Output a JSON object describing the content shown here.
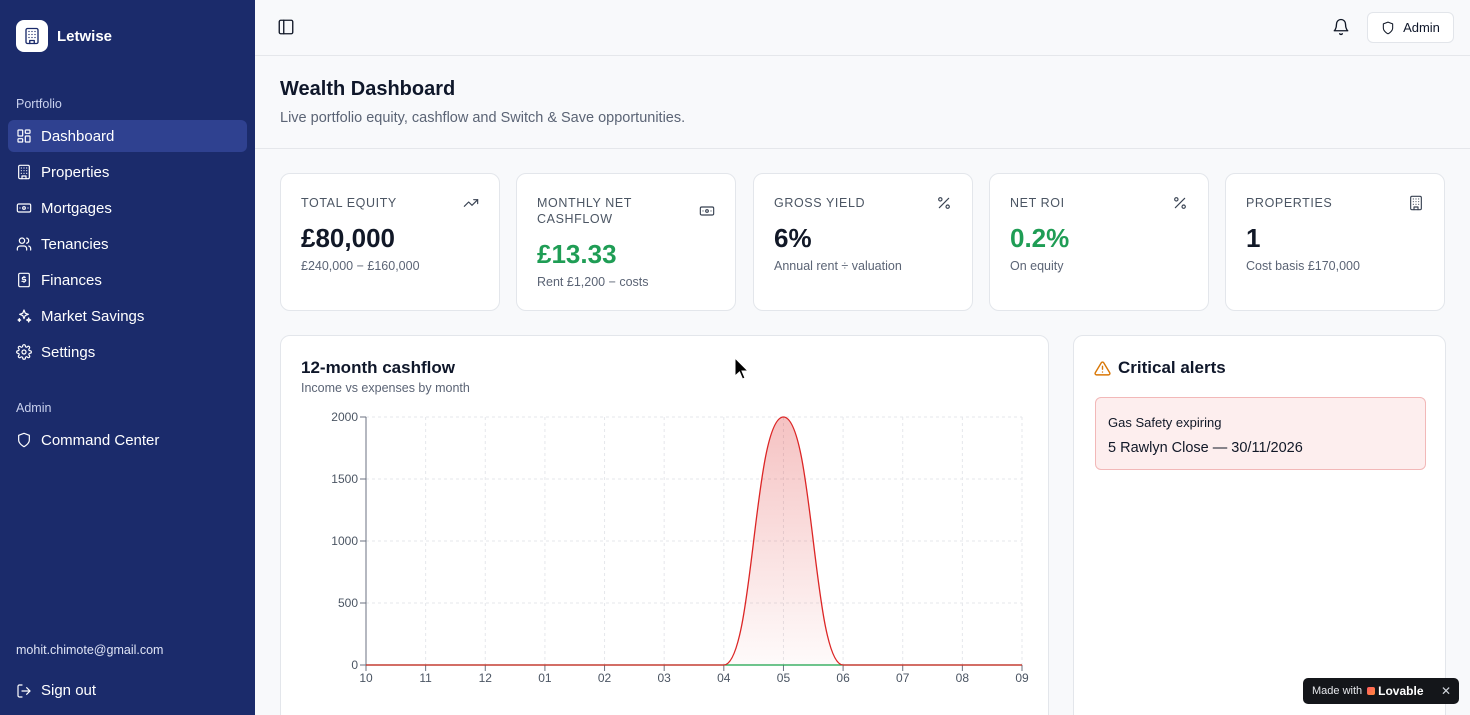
{
  "app": {
    "name": "Letwise"
  },
  "sidebar": {
    "sections": [
      {
        "label": "Portfolio"
      },
      {
        "label": "Admin"
      }
    ],
    "items": [
      {
        "label": "Dashboard",
        "icon": "dashboard-icon",
        "active": true
      },
      {
        "label": "Properties",
        "icon": "building-icon"
      },
      {
        "label": "Mortgages",
        "icon": "banknote-icon"
      },
      {
        "label": "Tenancies",
        "icon": "users-icon"
      },
      {
        "label": "Finances",
        "icon": "receipt-icon"
      },
      {
        "label": "Market Savings",
        "icon": "sparkles-icon"
      },
      {
        "label": "Settings",
        "icon": "gear-icon"
      }
    ],
    "admin_items": [
      {
        "label": "Command Center",
        "icon": "shield-icon"
      }
    ],
    "user_email": "mohit.chimote@gmail.com",
    "sign_out_label": "Sign out"
  },
  "topbar": {
    "admin_label": "Admin"
  },
  "header": {
    "title": "Wealth Dashboard",
    "subtitle": "Live portfolio equity, cashflow and Switch & Save opportunities."
  },
  "stats": [
    {
      "label": "Total Equity",
      "value": "£80,000",
      "sub": "£240,000 − £160,000",
      "icon": "trending-up-icon",
      "green": false
    },
    {
      "label": "Monthly Net Cashflow",
      "value": "£13.33",
      "sub": "Rent £1,200 − costs",
      "icon": "banknote-icon",
      "green": true
    },
    {
      "label": "Gross Yield",
      "value": "6%",
      "sub": "Annual rent ÷ valuation",
      "icon": "percent-icon",
      "green": false
    },
    {
      "label": "Net ROI",
      "value": "0.2%",
      "sub": "On equity",
      "icon": "percent-icon",
      "green": true
    },
    {
      "label": "Properties",
      "value": "1",
      "sub": "Cost basis £170,000",
      "icon": "building-icon",
      "green": false
    }
  ],
  "chart": {
    "title": "12-month cashflow",
    "subtitle": "Income vs expenses by month"
  },
  "chart_data": {
    "type": "area",
    "x": [
      "10",
      "11",
      "12",
      "01",
      "02",
      "03",
      "04",
      "05",
      "06",
      "07",
      "08",
      "09"
    ],
    "series": [
      {
        "color": "#dc2626",
        "values": [
          0,
          0,
          0,
          0,
          0,
          0,
          0,
          2000,
          0,
          0,
          0,
          0
        ]
      },
      {
        "color": "#16a34a",
        "values": [
          0,
          0,
          0,
          0,
          0,
          0,
          0,
          0,
          0,
          0,
          0,
          0
        ]
      }
    ],
    "y_ticks": [
      0,
      500,
      1000,
      1500,
      2000
    ],
    "ylim": [
      0,
      2000
    ],
    "grid": true
  },
  "alerts": {
    "title": "Critical alerts",
    "items": [
      {
        "title": "Gas Safety expiring",
        "detail": "5 Rawlyn Close — 30/11/2026"
      }
    ]
  },
  "badge": {
    "made_with": "Made with",
    "brand": "Lovable",
    "close": "✕"
  }
}
